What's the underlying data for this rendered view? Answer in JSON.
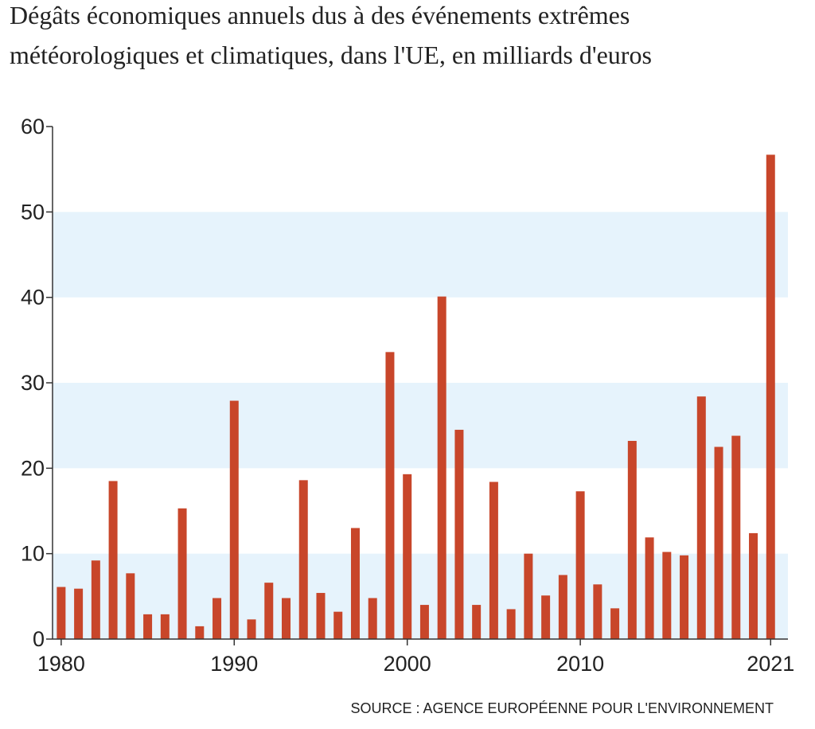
{
  "chart_data": {
    "type": "bar",
    "title": [
      "Dégâts économiques annuels dus à des événements extrêmes",
      "météorologiques et climatiques, dans l'UE, en milliards d'euros"
    ],
    "source": "SOURCE :  AGENCE EUROPÉENNE POUR L'ENVIRONNEMENT",
    "x": [
      1980,
      1981,
      1982,
      1983,
      1984,
      1985,
      1986,
      1987,
      1988,
      1989,
      1990,
      1991,
      1992,
      1993,
      1994,
      1995,
      1996,
      1997,
      1998,
      1999,
      2000,
      2001,
      2002,
      2003,
      2004,
      2005,
      2006,
      2007,
      2008,
      2009,
      2010,
      2011,
      2012,
      2013,
      2014,
      2015,
      2016,
      2017,
      2018,
      2019,
      2020,
      2021
    ],
    "values": [
      6.1,
      5.9,
      9.2,
      18.5,
      7.7,
      2.9,
      2.9,
      15.3,
      1.5,
      4.8,
      27.9,
      2.3,
      6.6,
      4.8,
      18.6,
      5.4,
      3.2,
      13.0,
      4.8,
      33.6,
      19.3,
      4.0,
      40.1,
      24.5,
      4.0,
      18.4,
      3.5,
      10.0,
      5.1,
      7.5,
      17.3,
      6.4,
      3.6,
      23.2,
      11.9,
      10.2,
      9.8,
      28.4,
      22.5,
      23.8,
      12.4,
      56.7
    ],
    "color": "#c8462a",
    "band_color": "#e6f3fc",
    "xlim": [
      1979.5,
      2022
    ],
    "xticks": [
      1980,
      1990,
      2000,
      2010,
      2021
    ],
    "ylim": [
      0,
      60
    ],
    "yticks": [
      0,
      10,
      20,
      30,
      40,
      50,
      60
    ]
  }
}
